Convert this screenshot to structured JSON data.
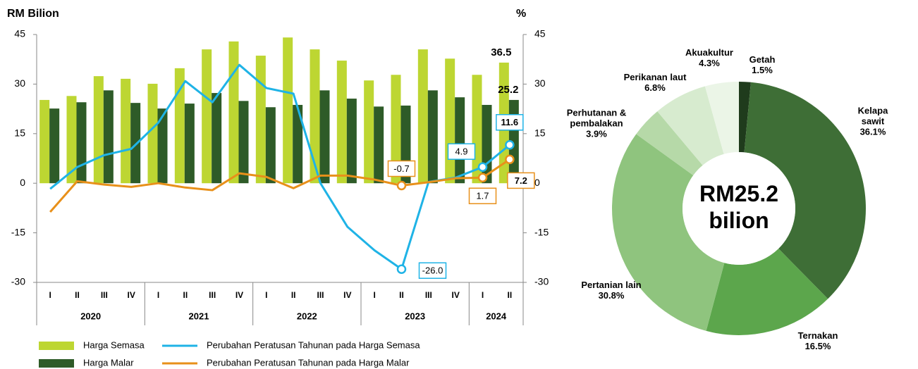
{
  "chart_data": [
    {
      "type": "combo",
      "y_label": "RM Bilion",
      "y2_label": "%",
      "categories": [
        "I",
        "II",
        "III",
        "IV",
        "I",
        "II",
        "III",
        "IV",
        "I",
        "II",
        "III",
        "IV",
        "I",
        "II",
        "III",
        "IV",
        "I",
        "II"
      ],
      "groups": [
        {
          "label": "2020",
          "size": 4
        },
        {
          "label": "2021",
          "size": 4
        },
        {
          "label": "2022",
          "size": 4
        },
        {
          "label": "2023",
          "size": 4
        },
        {
          "label": "2024",
          "size": 2
        }
      ],
      "ylim": [
        -30,
        45
      ],
      "yticks": [
        -30,
        -15,
        0,
        15,
        30,
        45
      ],
      "y2lim": [
        -30,
        45
      ],
      "y2ticks": [
        -30,
        -15,
        0,
        15,
        30,
        45
      ],
      "series": [
        {
          "name": "Harga Semasa",
          "kind": "bar",
          "color": "#bdd632",
          "values": [
            25.2,
            26.4,
            32.4,
            31.6,
            30.1,
            34.8,
            40.5,
            42.9,
            38.6,
            44.1,
            40.5,
            37.1,
            31.1,
            32.8,
            40.5,
            37.7,
            32.8,
            36.5
          ],
          "value_labels": [
            null,
            null,
            null,
            null,
            null,
            null,
            null,
            null,
            null,
            null,
            null,
            null,
            null,
            null,
            null,
            null,
            null,
            "36.5"
          ]
        },
        {
          "name": "Harga Malar",
          "kind": "bar",
          "color": "#2e5b28",
          "values": [
            22.6,
            24.5,
            28.1,
            24.3,
            22.6,
            24.1,
            27.3,
            24.9,
            23.0,
            23.7,
            28.1,
            25.6,
            23.2,
            23.5,
            28.1,
            26.0,
            23.7,
            25.2
          ],
          "value_labels": [
            null,
            null,
            null,
            null,
            null,
            null,
            null,
            null,
            null,
            null,
            null,
            null,
            null,
            null,
            null,
            null,
            null,
            "25.2"
          ]
        },
        {
          "name": "Perubahan Peratusan Tahunan pada Harga Semasa",
          "kind": "line",
          "axis": "y2",
          "color": "#1fb3e6",
          "values": [
            -1.7,
            4.9,
            8.5,
            10.4,
            18.3,
            30.9,
            24.5,
            35.8,
            28.8,
            27.1,
            0,
            -13.2,
            -20.3,
            -26.0,
            0.4,
            1.7,
            4.9,
            11.6
          ],
          "value_labels": [
            null,
            null,
            null,
            null,
            null,
            null,
            null,
            null,
            null,
            null,
            null,
            null,
            null,
            "-26.0",
            null,
            null,
            "4.9",
            "11.6"
          ]
        },
        {
          "name": "Perubahan Peratusan Tahunan pada Harga Malar",
          "kind": "line",
          "axis": "y2",
          "color": "#e8901a",
          "values": [
            -8.7,
            0.6,
            -0.4,
            -1.1,
            0,
            -1.3,
            -2.1,
            3.0,
            1.9,
            -1.5,
            2.3,
            2.3,
            1.1,
            -0.7,
            0.3,
            1.5,
            1.7,
            7.2
          ],
          "value_labels": [
            null,
            null,
            null,
            null,
            null,
            null,
            null,
            null,
            null,
            null,
            null,
            null,
            null,
            "-0.7",
            null,
            null,
            "1.7",
            "7.2"
          ]
        }
      ]
    },
    {
      "type": "donut",
      "center_label": "RM25.2 bilion",
      "categories": [
        "Getah",
        "Kelapa sawit",
        "Ternakan",
        "Pertanian lain",
        "Perhutanan & pembalakan",
        "Perikanan laut",
        "Akuakultur"
      ],
      "values": [
        1.5,
        36.1,
        16.5,
        30.8,
        3.9,
        6.8,
        4.3
      ],
      "value_labels": [
        "1.5%",
        "36.1%",
        "16.5%",
        "30.8%",
        "3.9%",
        "6.8%",
        "4.3%"
      ],
      "colors": [
        "#1f3b1c",
        "#3e6e36",
        "#5ca64c",
        "#8fc47e",
        "#b6d9a8",
        "#d7ebcf",
        "#ebf5e7"
      ]
    }
  ]
}
